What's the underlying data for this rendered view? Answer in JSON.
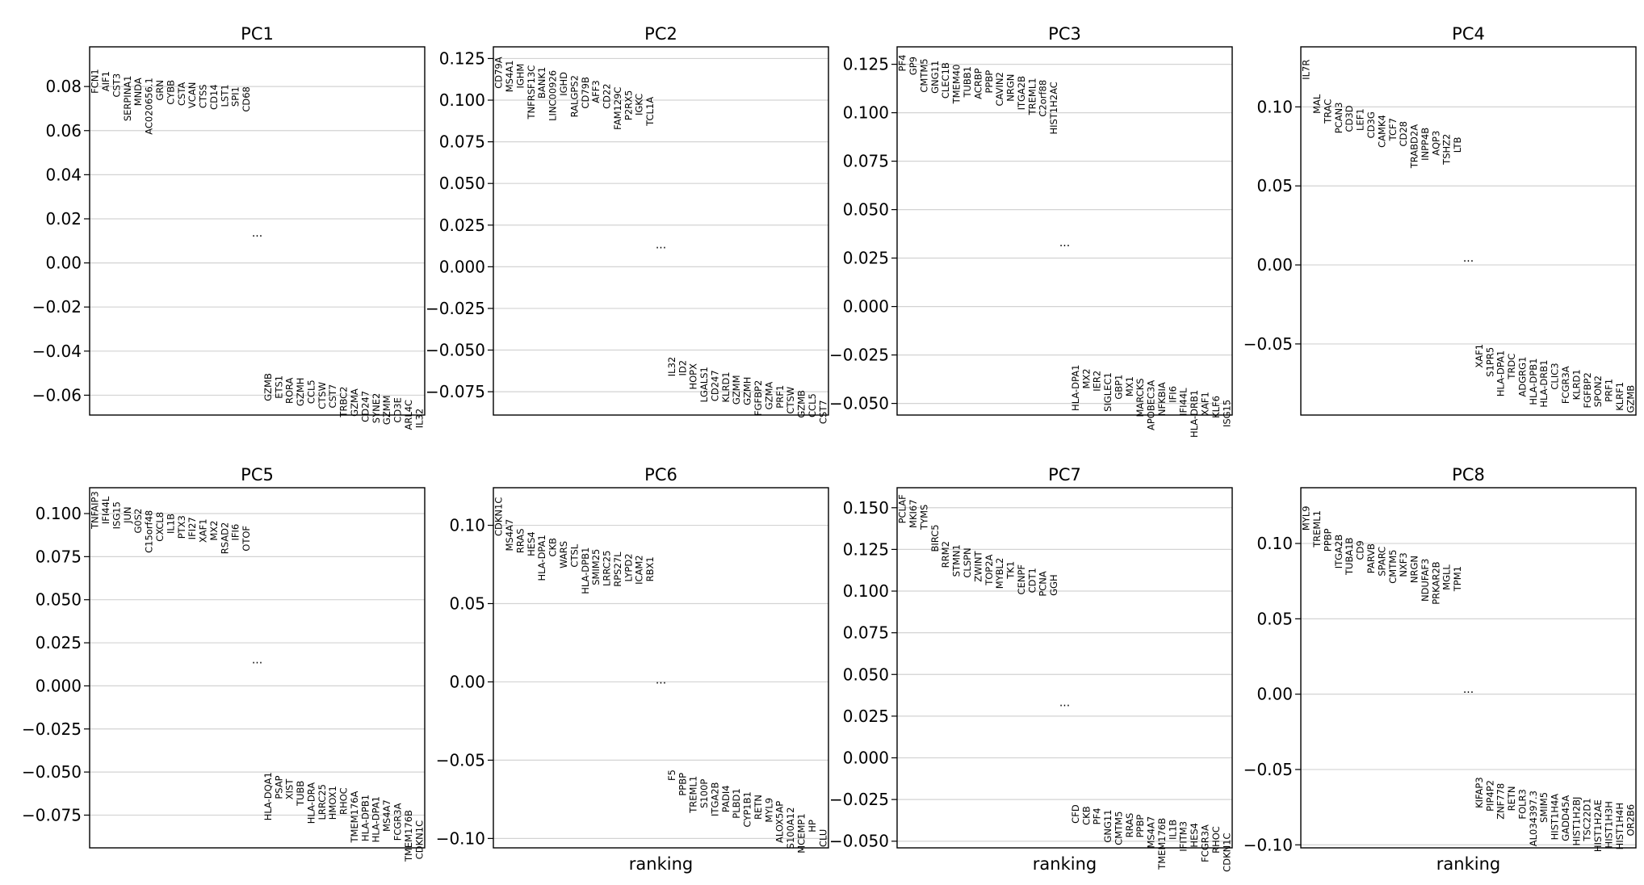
{
  "figure": {
    "colors": {
      "grid": "#d3d3d3",
      "axis": "#000000",
      "text": "#000000"
    }
  },
  "chart_data": [
    {
      "type": "scatter",
      "title": "PC1",
      "xlabel": "",
      "ylabel": "",
      "ylim": [
        -0.069,
        0.098
      ],
      "yticks": [
        "0.08",
        "0.06",
        "0.04",
        "0.02",
        "0.00",
        "−0.02",
        "−0.04",
        "−0.06"
      ],
      "ytick_values": [
        0.08,
        0.06,
        0.04,
        0.02,
        0.0,
        -0.02,
        -0.04,
        -0.06
      ],
      "grid": true,
      "ellipsis": "...",
      "ellipsis_value": 0.012,
      "top_genes": [
        "FCN1",
        "AIF1",
        "CST3",
        "SERPINA1",
        "MNDA",
        "AC020656.1",
        "GRN",
        "CYBB",
        "CSTA",
        "VCAN",
        "CTSS",
        "CD14",
        "LST1",
        "SPI1",
        "CD68"
      ],
      "top_values": [
        0.088,
        0.087,
        0.086,
        0.085,
        0.084,
        0.084,
        0.083,
        0.083,
        0.082,
        0.082,
        0.081,
        0.081,
        0.081,
        0.08,
        0.08
      ],
      "bottom_genes": [
        "GZMB",
        "ETS1",
        "RORA",
        "GZMH",
        "CCL5",
        "CTSW",
        "CST7",
        "TRBC2",
        "GZMA",
        "CD247",
        "SYNE2",
        "GZMM",
        "CD3E",
        "ARL4C",
        "IL32"
      ],
      "bottom_values": [
        -0.05,
        -0.051,
        -0.052,
        -0.052,
        -0.053,
        -0.054,
        -0.055,
        -0.056,
        -0.057,
        -0.058,
        -0.059,
        -0.06,
        -0.061,
        -0.062,
        -0.066
      ]
    },
    {
      "type": "scatter",
      "title": "PC2",
      "xlabel": "",
      "ylabel": "",
      "ylim": [
        -0.089,
        0.132
      ],
      "yticks": [
        "0.125",
        "0.100",
        "0.075",
        "0.050",
        "0.025",
        "0.000",
        "−0.025",
        "−0.050",
        "−0.075"
      ],
      "ytick_values": [
        0.125,
        0.1,
        0.075,
        0.05,
        0.025,
        0.0,
        -0.025,
        -0.05,
        -0.075
      ],
      "grid": true,
      "ellipsis": "...",
      "ellipsis_value": 0.011,
      "top_genes": [
        "CD79A",
        "MS4A1",
        "IGHM",
        "TNFRSF13C",
        "BANK1",
        "LINC00926",
        "IGHD",
        "RALGPS2",
        "CD79B",
        "AFF3",
        "CD22",
        "FAM129C",
        "P2RX5",
        "IGKC",
        "TCL1A"
      ],
      "top_values": [
        0.126,
        0.124,
        0.122,
        0.121,
        0.12,
        0.118,
        0.117,
        0.115,
        0.114,
        0.112,
        0.11,
        0.108,
        0.106,
        0.104,
        0.102
      ],
      "bottom_genes": [
        "IL32",
        "ID2",
        "HOPX",
        "LGALS1",
        "CD247",
        "KLRD1",
        "GZMM",
        "GZMH",
        "FGFBP2",
        "GZMA",
        "PRF1",
        "CTSW",
        "GZMB",
        "CCL5",
        "CST7"
      ],
      "bottom_values": [
        -0.054,
        -0.056,
        -0.058,
        -0.06,
        -0.062,
        -0.063,
        -0.065,
        -0.066,
        -0.068,
        -0.069,
        -0.071,
        -0.072,
        -0.074,
        -0.076,
        -0.08
      ]
    },
    {
      "type": "scatter",
      "title": "PC3",
      "xlabel": "",
      "ylabel": "",
      "ylim": [
        -0.056,
        0.134
      ],
      "yticks": [
        "0.125",
        "0.100",
        "0.075",
        "0.050",
        "0.025",
        "0.000",
        "−0.025",
        "−0.050"
      ],
      "ytick_values": [
        0.125,
        0.1,
        0.075,
        0.05,
        0.025,
        0.0,
        -0.025,
        -0.05
      ],
      "grid": true,
      "ellipsis": "...",
      "ellipsis_value": 0.031,
      "top_genes": [
        "PF4",
        "GP9",
        "CMTM5",
        "GNG11",
        "CLEC1B",
        "TMEM40",
        "TUBB1",
        "ACRBP",
        "PPBP",
        "CAVIN2",
        "NRGN",
        "ITGA2B",
        "TREML1",
        "C2orf88",
        "HIST1H2AC"
      ],
      "top_values": [
        0.13,
        0.129,
        0.128,
        0.127,
        0.126,
        0.125,
        0.124,
        0.123,
        0.122,
        0.121,
        0.12,
        0.119,
        0.118,
        0.117,
        0.116
      ],
      "bottom_genes": [
        "HLA-DPA1",
        "MX2",
        "IER2",
        "SIGLEC1",
        "GBP1",
        "MX1",
        "MARCKS",
        "APOBEC3A",
        "NFKBIA",
        "IFI6",
        "IFI44L",
        "HLA-DRB1",
        "XAF1",
        "KLF6",
        "ISG15"
      ],
      "bottom_values": [
        -0.03,
        -0.032,
        -0.033,
        -0.034,
        -0.035,
        -0.036,
        -0.037,
        -0.038,
        -0.039,
        -0.041,
        -0.042,
        -0.043,
        -0.044,
        -0.046,
        -0.048
      ]
    },
    {
      "type": "scatter",
      "title": "PC4",
      "xlabel": "",
      "ylabel": "",
      "ylim": [
        -0.095,
        0.138
      ],
      "yticks": [
        "0.10",
        "0.05",
        "0.00",
        "−0.05"
      ],
      "ytick_values": [
        0.1,
        0.05,
        0.0,
        -0.05
      ],
      "grid": true,
      "ellipsis": "...",
      "ellipsis_value": 0.002,
      "top_genes": [
        "IL7R",
        "MAL",
        "TRAC",
        "PCAN3",
        "CD3D",
        "LEF1",
        "CD3G",
        "CAMK4",
        "TCF7",
        "CD28",
        "TRABD2A",
        "INPP4B",
        "AQP3",
        "TSHZ2",
        "LTB"
      ],
      "top_values": [
        0.13,
        0.108,
        0.105,
        0.103,
        0.101,
        0.099,
        0.097,
        0.095,
        0.093,
        0.091,
        0.089,
        0.087,
        0.085,
        0.083,
        0.081
      ],
      "bottom_genes": [
        "XAF1",
        "S1PR5",
        "HLA-DPA1",
        "TRDC",
        "ADGRG1",
        "HLA-DPB1",
        "HLA-DRB1",
        "CLIC3",
        "FCGR3A",
        "KLRD1",
        "FGFBP2",
        "SPON2",
        "PRF1",
        "KLRF1",
        "GZMB"
      ],
      "bottom_values": [
        -0.05,
        -0.052,
        -0.054,
        -0.056,
        -0.058,
        -0.059,
        -0.06,
        -0.062,
        -0.064,
        -0.066,
        -0.068,
        -0.07,
        -0.072,
        -0.074,
        -0.076
      ]
    },
    {
      "type": "scatter",
      "title": "PC5",
      "xlabel": "",
      "ylabel": "",
      "ylim": [
        -0.094,
        0.115
      ],
      "yticks": [
        "0.100",
        "0.075",
        "0.050",
        "0.025",
        "0.000",
        "−0.025",
        "−0.050",
        "−0.075"
      ],
      "ytick_values": [
        0.1,
        0.075,
        0.05,
        0.025,
        0.0,
        -0.025,
        -0.05,
        -0.075
      ],
      "grid": true,
      "ellipsis": "...",
      "ellipsis_value": 0.013,
      "top_genes": [
        "TNFAIP3",
        "IFI44L",
        "ISG15",
        "JUN",
        "G0S2",
        "C15orf48",
        "CXCL8",
        "IL1B",
        "PTX3",
        "IFI27",
        "XAF1",
        "MX2",
        "RSAD2",
        "IFI6",
        "OTOF"
      ],
      "top_values": [
        0.113,
        0.11,
        0.107,
        0.104,
        0.103,
        0.102,
        0.101,
        0.1,
        0.099,
        0.098,
        0.097,
        0.096,
        0.095,
        0.094,
        0.093
      ],
      "bottom_genes": [
        "HLA-DQA1",
        "PSAP",
        "XIST",
        "TUBB",
        "HLA-DRA",
        "LRRC25",
        "HMOX1",
        "RHOC",
        "TMEM176A",
        "HLA-DPB1",
        "HLA-DPA1",
        "MS4A7",
        "FCGR3A",
        "TMEM176B",
        "CDKN1C"
      ],
      "bottom_values": [
        -0.05,
        -0.052,
        -0.054,
        -0.055,
        -0.056,
        -0.057,
        -0.058,
        -0.059,
        -0.061,
        -0.063,
        -0.064,
        -0.066,
        -0.068,
        -0.072,
        -0.078
      ]
    },
    {
      "type": "scatter",
      "title": "PC6",
      "xlabel": "ranking",
      "ylabel": "",
      "ylim": [
        -0.106,
        0.124
      ],
      "yticks": [
        "0.10",
        "0.05",
        "0.00",
        "−0.05",
        "−0.10"
      ],
      "ytick_values": [
        0.1,
        0.05,
        0.0,
        -0.05,
        -0.1
      ],
      "grid": true,
      "ellipsis": "...",
      "ellipsis_value": -0.001,
      "top_genes": [
        "CDKN1C",
        "MS4A7",
        "RRAS",
        "HES4",
        "HLA-DPA1",
        "CKB",
        "WARS",
        "CTSL",
        "HLA-DPB1",
        "SMIM25",
        "LRRC25",
        "RPS27L",
        "LYPD2",
        "ICAM2",
        "RBX1"
      ],
      "top_values": [
        0.118,
        0.104,
        0.098,
        0.096,
        0.094,
        0.092,
        0.09,
        0.088,
        0.086,
        0.085,
        0.084,
        0.083,
        0.082,
        0.081,
        0.08
      ],
      "bottom_genes": [
        "F5",
        "PPBP",
        "TREML1",
        "S100P",
        "ITGA2B",
        "PADI4",
        "PLBD1",
        "CYP1B1",
        "RETN",
        "MYL9",
        "ALOX5AP",
        "S100A12",
        "MCEMP1",
        "HP",
        "CLU"
      ],
      "bottom_values": [
        -0.056,
        -0.058,
        -0.06,
        -0.062,
        -0.064,
        -0.066,
        -0.068,
        -0.07,
        -0.072,
        -0.074,
        -0.076,
        -0.08,
        -0.084,
        -0.088,
        -0.094
      ]
    },
    {
      "type": "scatter",
      "title": "PC7",
      "xlabel": "ranking",
      "ylabel": "",
      "ylim": [
        -0.054,
        0.162
      ],
      "yticks": [
        "0.150",
        "0.125",
        "0.100",
        "0.075",
        "0.050",
        "0.025",
        "0.000",
        "−0.025",
        "−0.050"
      ],
      "ytick_values": [
        0.15,
        0.125,
        0.1,
        0.075,
        0.05,
        0.025,
        0.0,
        -0.025,
        -0.05
      ],
      "grid": true,
      "ellipsis": "...",
      "ellipsis_value": 0.031,
      "top_genes": [
        "PCLAF",
        "MKI67",
        "TYMS",
        "BIRC5",
        "RRM2",
        "STMN1",
        "CLSPN",
        "ZWINT",
        "TOP2A",
        "MYBL2",
        "TK1",
        "CENPF",
        "CDT1",
        "PCNA",
        "GGH"
      ],
      "top_values": [
        0.158,
        0.155,
        0.152,
        0.14,
        0.13,
        0.128,
        0.126,
        0.124,
        0.122,
        0.12,
        0.118,
        0.116,
        0.114,
        0.112,
        0.11
      ],
      "bottom_genes": [
        "CFD",
        "CKB",
        "PF4",
        "GNG11",
        "CMTM5",
        "RRAS",
        "PPBP",
        "MS4A7",
        "TMEM176B",
        "IL1B",
        "IFITM3",
        "HES4",
        "FCGR3A",
        "RHOC",
        "CDKN1C"
      ],
      "bottom_values": [
        -0.028,
        -0.029,
        -0.03,
        -0.031,
        -0.032,
        -0.033,
        -0.034,
        -0.035,
        -0.036,
        -0.037,
        -0.038,
        -0.039,
        -0.04,
        -0.041,
        -0.045
      ]
    },
    {
      "type": "scatter",
      "title": "PC8",
      "xlabel": "ranking",
      "ylabel": "",
      "ylim": [
        -0.102,
        0.137
      ],
      "yticks": [
        "0.10",
        "0.05",
        "0.00",
        "−0.05",
        "−0.10"
      ],
      "ytick_values": [
        0.1,
        0.05,
        0.0,
        -0.05,
        -0.1
      ],
      "grid": true,
      "ellipsis": "...",
      "ellipsis_value": 0.001,
      "top_genes": [
        "MYL9",
        "TREML1",
        "PPBP",
        "ITGA2B",
        "TUBA1B",
        "CD9",
        "PARVB",
        "SPARC",
        "CMTM5",
        "NXF3",
        "NRGN",
        "NDUFAF3",
        "PRKAR2B",
        "MGLL",
        "TPM1"
      ],
      "top_values": [
        0.125,
        0.122,
        0.11,
        0.106,
        0.104,
        0.102,
        0.1,
        0.098,
        0.096,
        0.094,
        0.092,
        0.09,
        0.088,
        0.086,
        0.085
      ],
      "bottom_genes": [
        "KIFAP3",
        "PIP4P2",
        "ZNF778",
        "RETN",
        "FOLR3",
        "AL034397.3",
        "SMIM5",
        "HIST1H4A",
        "GADD45A",
        "HIST1H2BJ",
        "TSC22D1",
        "HIST1H2AE",
        "HIST1H3H",
        "HIST1H4H",
        "OR2B6"
      ],
      "bottom_values": [
        -0.055,
        -0.057,
        -0.059,
        -0.061,
        -0.063,
        -0.064,
        -0.065,
        -0.066,
        -0.067,
        -0.068,
        -0.069,
        -0.07,
        -0.071,
        -0.072,
        -0.073
      ]
    }
  ]
}
